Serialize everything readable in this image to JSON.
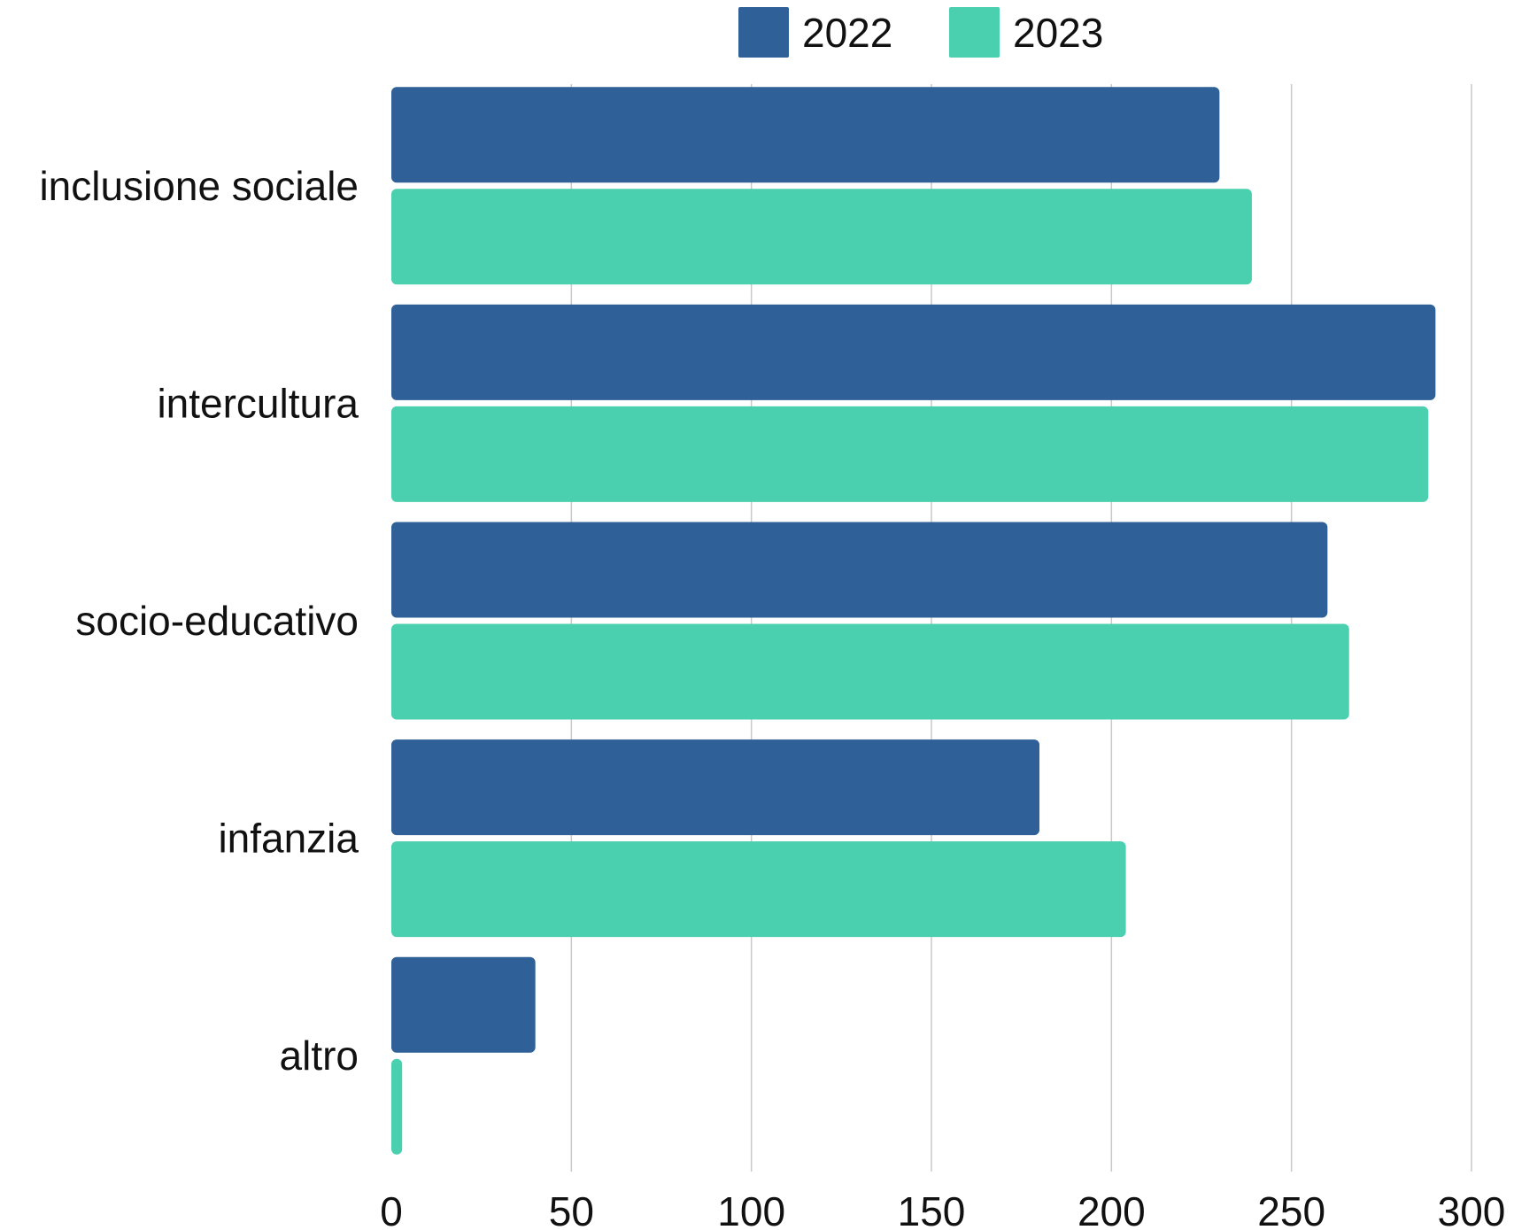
{
  "chart_data": {
    "type": "bar",
    "orientation": "horizontal",
    "categories": [
      "inclusione sociale",
      "intercultura",
      "socio-educativo",
      "infanzia",
      "altro"
    ],
    "series": [
      {
        "name": "2022",
        "color": "#2f6097",
        "values": [
          230,
          290,
          260,
          180,
          40
        ]
      },
      {
        "name": "2023",
        "color": "#4ad0af",
        "values": [
          239,
          288,
          266,
          204,
          3
        ]
      }
    ],
    "x_ticks": [
      0,
      50,
      100,
      150,
      200,
      250,
      300
    ],
    "xlim": [
      0,
      300
    ],
    "grid": "vertical",
    "legend_position": "top"
  }
}
